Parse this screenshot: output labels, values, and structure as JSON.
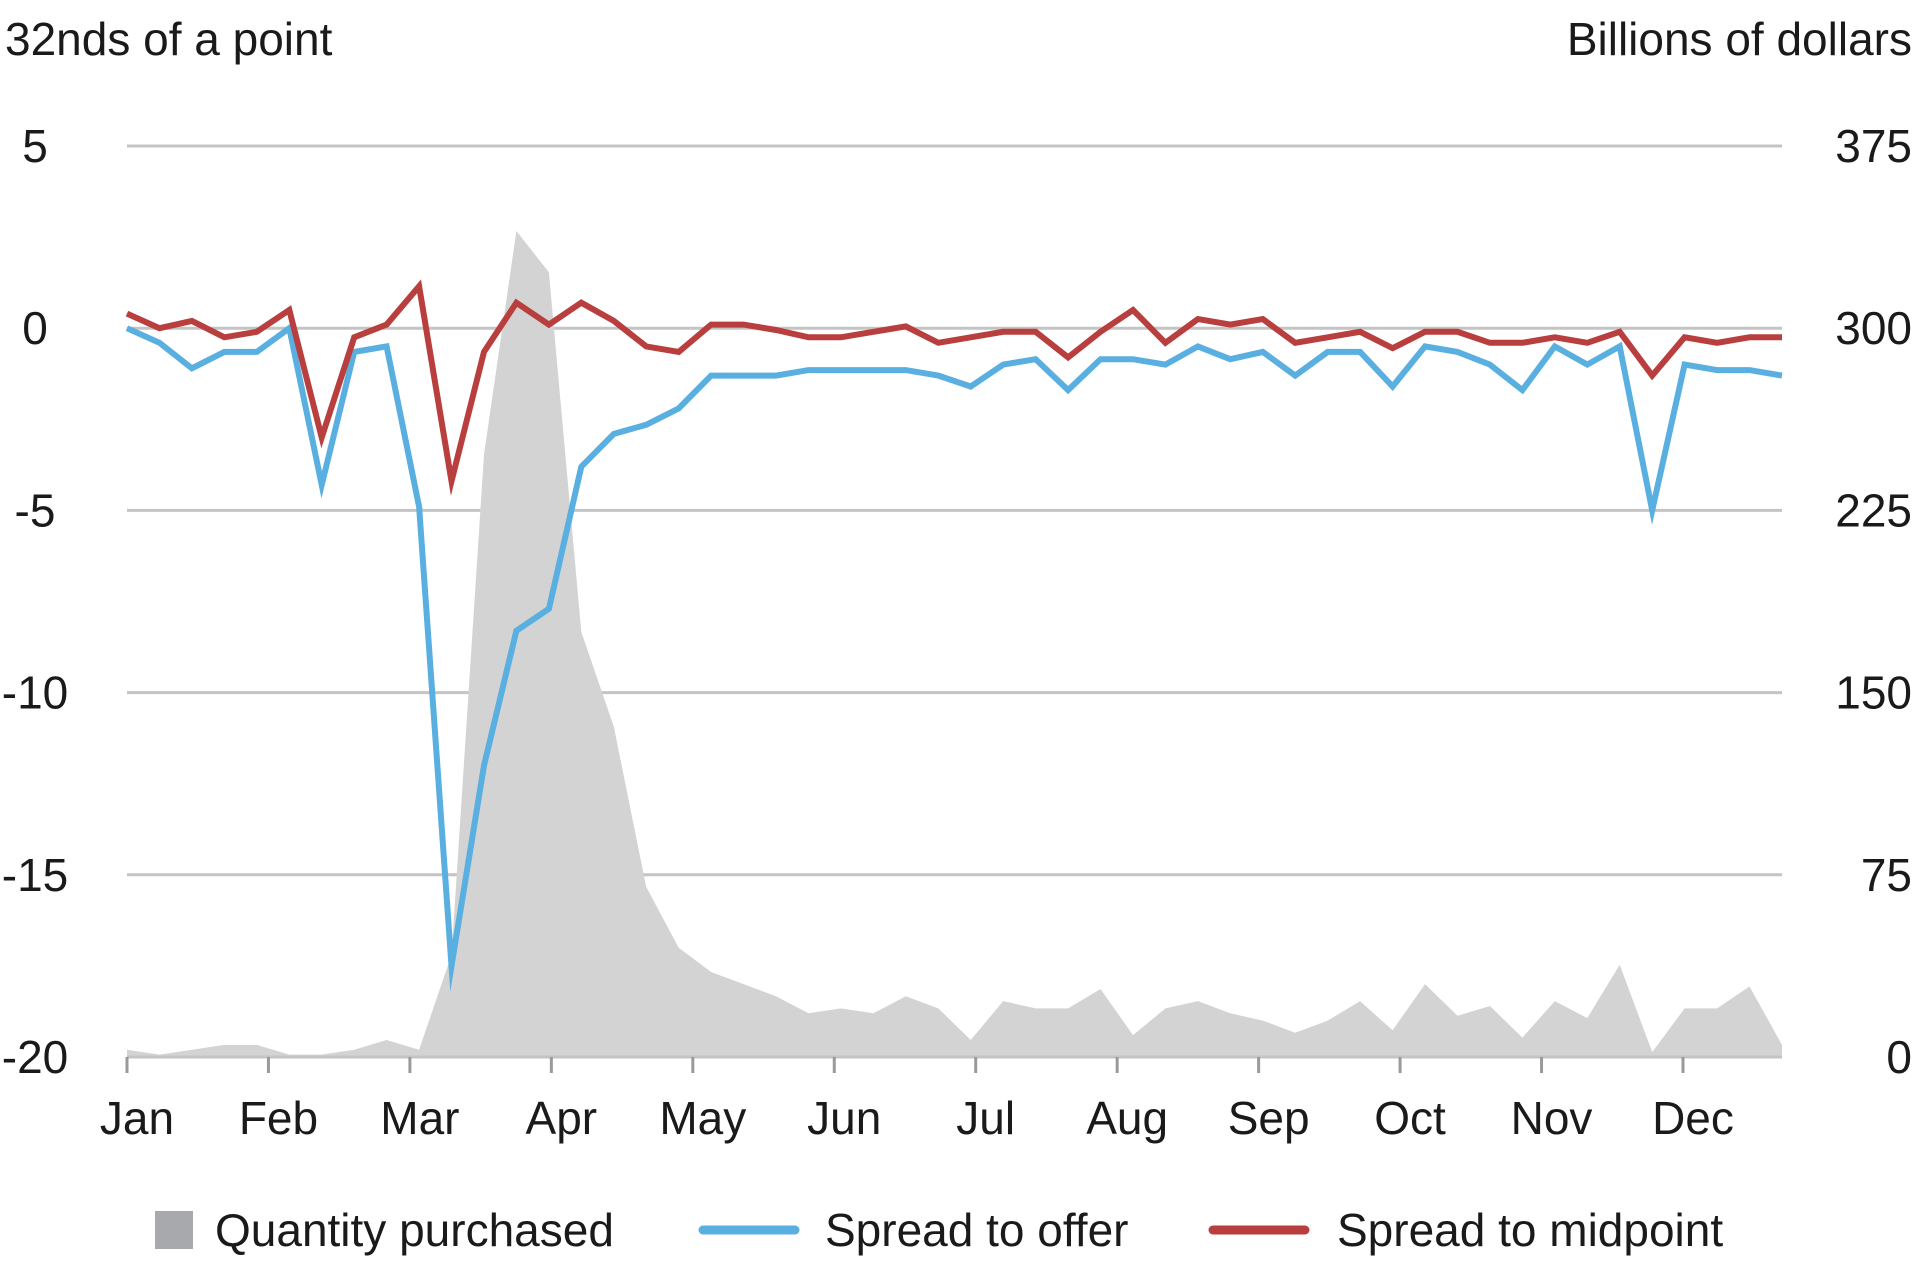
{
  "chart_data": {
    "type": "line",
    "left_axis_title": "32nds of a point",
    "right_axis_title": "Billions of dollars",
    "left_ylim": [
      -20,
      5
    ],
    "right_ylim": [
      0,
      375
    ],
    "left_ticks": [
      5,
      0,
      -5,
      -10,
      -15,
      -20
    ],
    "left_tick_labels": [
      "5",
      "0",
      "-5",
      "-10",
      "-15",
      "-20"
    ],
    "right_ticks": [
      375,
      300,
      225,
      150,
      75,
      0
    ],
    "right_tick_labels": [
      "375",
      "300",
      "225",
      "150",
      "75",
      "0"
    ],
    "month_labels": [
      "Jan",
      "Feb",
      "Mar",
      "Apr",
      "May",
      "Jun",
      "Jul",
      "Aug",
      "Sep",
      "Oct",
      "Nov",
      "Dec"
    ],
    "grid": true,
    "legend_position": "bottom",
    "series": [
      {
        "name": "Quantity purchased",
        "kind": "area",
        "axis": "right",
        "color": "#d3d3d3",
        "legend_color": "#a7a9ac",
        "values": [
          3,
          1,
          3,
          5,
          5,
          1,
          1,
          3,
          7,
          3,
          42,
          248,
          340,
          323,
          175,
          136,
          70,
          45,
          35,
          30,
          25,
          18,
          20,
          18,
          25,
          20,
          7,
          23,
          20,
          20,
          28,
          9,
          20,
          23,
          18,
          15,
          10,
          15,
          23,
          11,
          30,
          17,
          21,
          8,
          23,
          16,
          38,
          2,
          20,
          20,
          29,
          5
        ]
      },
      {
        "name": "Spread to offer",
        "kind": "line",
        "axis": "left",
        "color": "#5aafe1",
        "values": [
          0.0,
          -0.4,
          -1.1,
          -0.65,
          -0.65,
          0.0,
          -4.3,
          -0.65,
          -0.5,
          -4.9,
          -17.5,
          -12.0,
          -8.3,
          -7.7,
          -3.8,
          -2.9,
          -2.65,
          -2.2,
          -1.3,
          -1.3,
          -1.3,
          -1.15,
          -1.15,
          -1.15,
          -1.15,
          -1.3,
          -1.6,
          -1.0,
          -0.85,
          -1.7,
          -0.85,
          -0.85,
          -1.0,
          -0.5,
          -0.85,
          -0.65,
          -1.3,
          -0.65,
          -0.65,
          -1.6,
          -0.5,
          -0.65,
          -1.0,
          -1.7,
          -0.5,
          -1.0,
          -0.5,
          -5.0,
          -1.0,
          -1.15,
          -1.15,
          -1.3
        ]
      },
      {
        "name": "Spread to midpoint",
        "kind": "line",
        "axis": "left",
        "color": "#b93f3f",
        "values": [
          0.4,
          0.0,
          0.2,
          -0.25,
          -0.1,
          0.5,
          -3.0,
          -0.25,
          0.1,
          1.15,
          -4.2,
          -0.65,
          0.7,
          0.1,
          0.7,
          0.2,
          -0.5,
          -0.65,
          0.1,
          0.1,
          -0.05,
          -0.25,
          -0.25,
          -0.1,
          0.05,
          -0.4,
          -0.25,
          -0.1,
          -0.1,
          -0.8,
          -0.1,
          0.5,
          -0.4,
          0.25,
          0.1,
          0.25,
          -0.4,
          -0.25,
          -0.1,
          -0.55,
          -0.1,
          -0.1,
          -0.4,
          -0.4,
          -0.25,
          -0.4,
          -0.1,
          -1.3,
          -0.25,
          -0.4,
          -0.25,
          -0.25
        ]
      }
    ]
  }
}
